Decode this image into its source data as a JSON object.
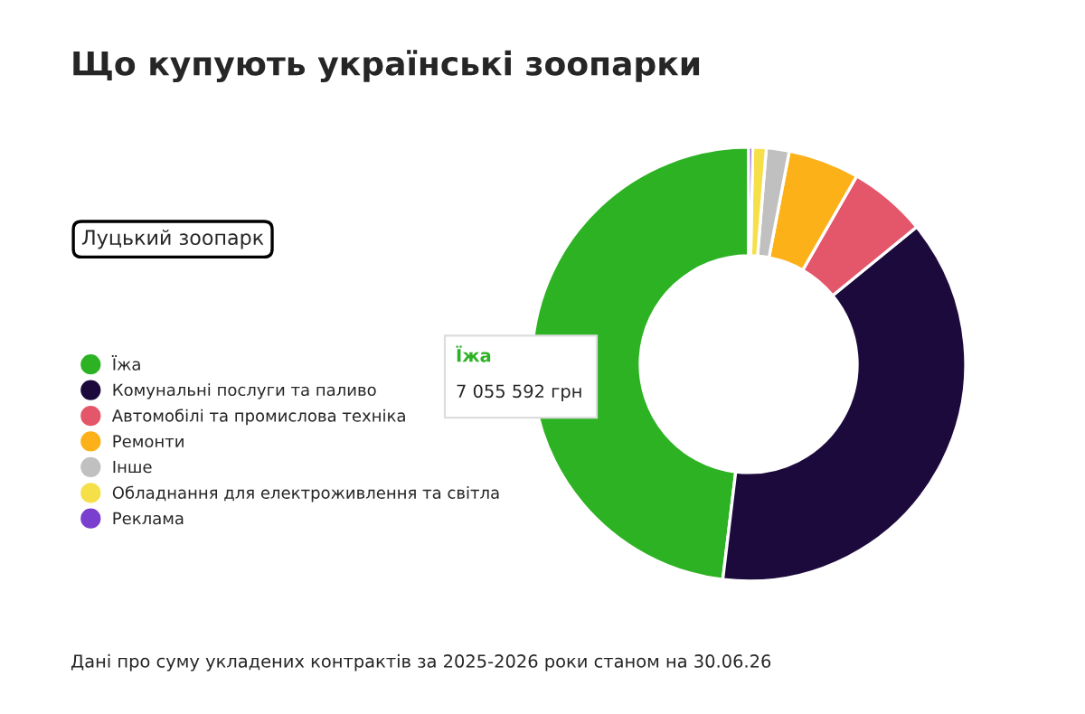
{
  "chart_data": {
    "type": "donut",
    "title": "Що купують українські зоопарки",
    "categories": [
      "Їжа",
      "Комунальні послуги та паливо",
      "Автомобілі та промислова техніка",
      "Ремонти",
      "Інше",
      "Обладнання для електроживлення та світла",
      "Реклама"
    ],
    "values": [
      48.1,
      37.8,
      5.8,
      5.3,
      1.7,
      1.0,
      0.3
    ],
    "colors": [
      "#2db224",
      "#1c0a3c",
      "#e4566a",
      "#fbb117",
      "#c0c0c0",
      "#f5e04a",
      "#7b3fd0"
    ],
    "legend": "left",
    "annotations": [
      "Луцький зоопарк",
      "Їжа",
      "7 055 592 грн",
      "Дані про суму укладених контрактів за 2025-2026 роки станом на 30.06.26"
    ]
  }
}
